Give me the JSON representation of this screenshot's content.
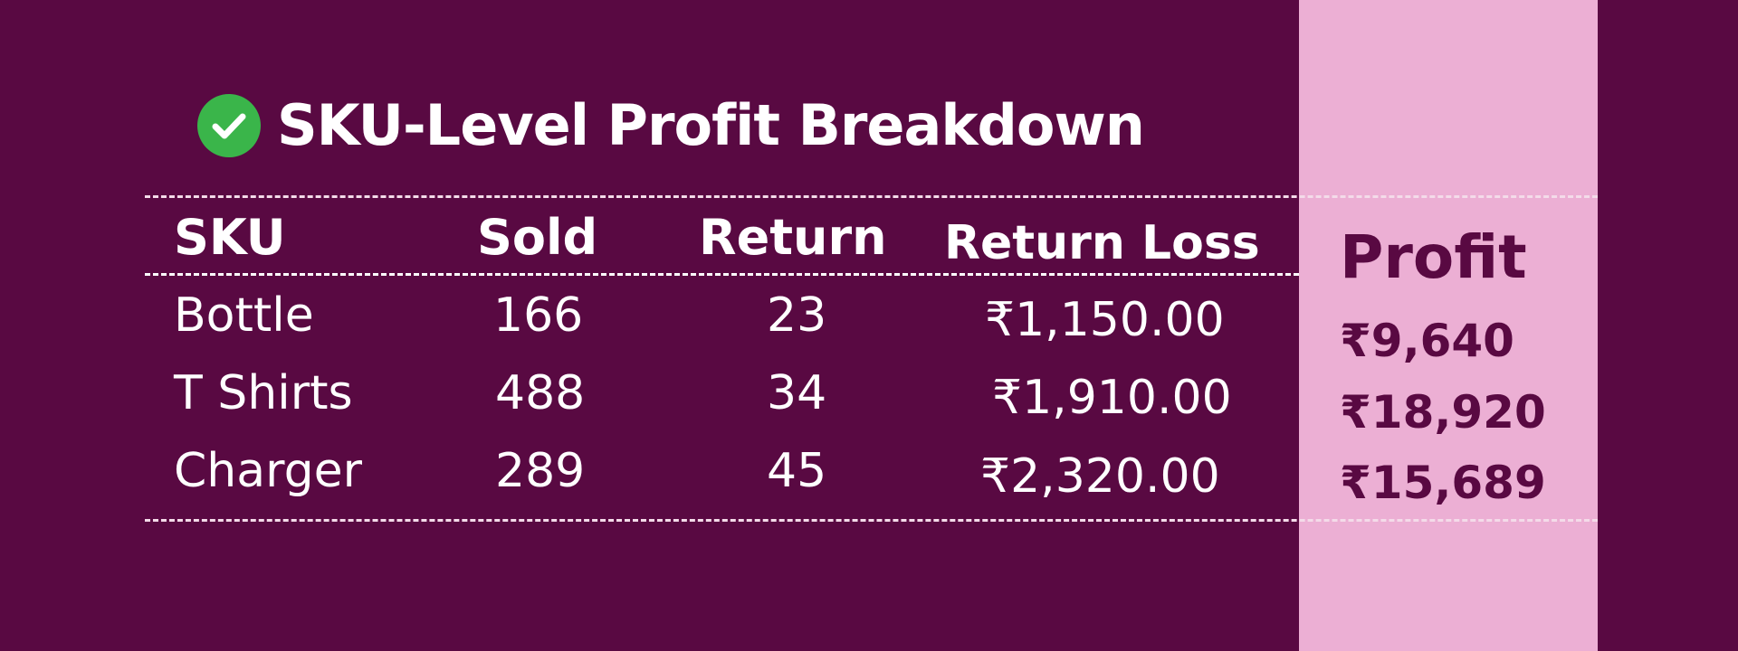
{
  "title": "SKU-Level Profit Breakdown",
  "colors": {
    "background": "#590942",
    "profit_band": "#ecafd4",
    "check_badge": "#3ab54a",
    "text": "#ffffff",
    "profit_text": "#590942"
  },
  "icons": {
    "title_icon": "check-circle-icon"
  },
  "table": {
    "headers": {
      "sku": "SKU",
      "sold": "Sold",
      "return": "Return",
      "return_loss": "Return Loss",
      "profit": "Profit"
    },
    "rows": [
      {
        "sku": "Bottle",
        "sold": "166",
        "return": "23",
        "return_loss": "₹1,150.00",
        "profit": "₹9,640"
      },
      {
        "sku": "T Shirts",
        "sold": "488",
        "return": "34",
        "return_loss": "₹1,910.00",
        "profit": "₹18,920"
      },
      {
        "sku": "Charger",
        "sold": "289",
        "return": "45",
        "return_loss": "₹2,320.00",
        "profit": "₹15,689"
      }
    ]
  }
}
